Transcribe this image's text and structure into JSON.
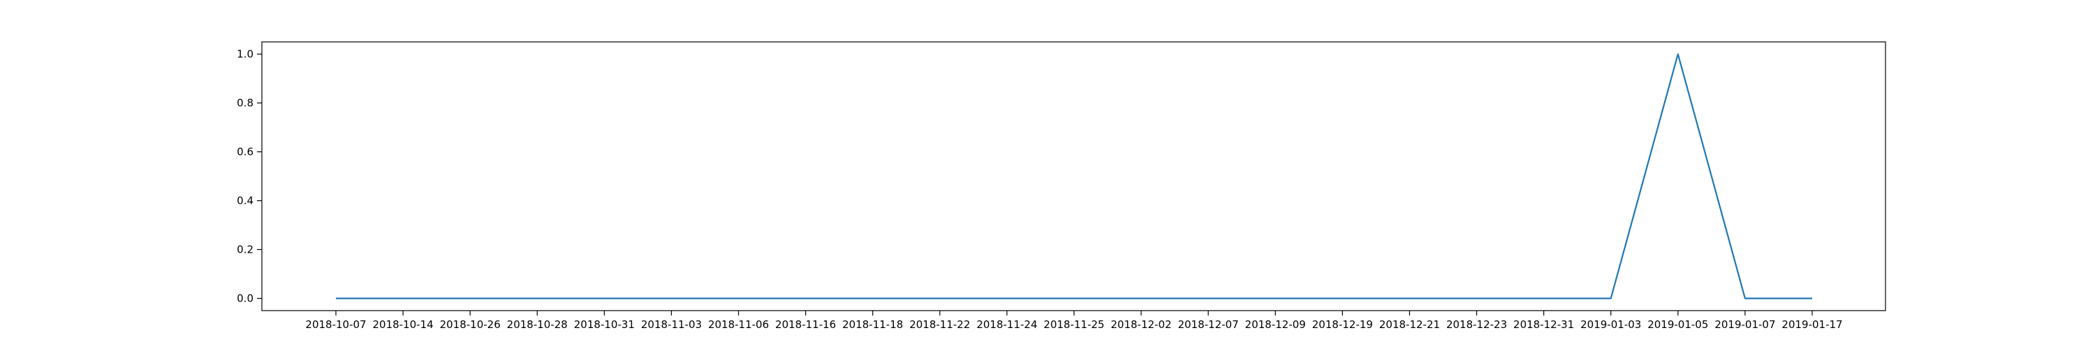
{
  "chart_data": {
    "type": "line",
    "title": "",
    "xlabel": "",
    "ylabel": "",
    "x": [
      "2018-10-07",
      "2018-10-14",
      "2018-10-26",
      "2018-10-28",
      "2018-10-31",
      "2018-11-03",
      "2018-11-06",
      "2018-11-16",
      "2018-11-18",
      "2018-11-22",
      "2018-11-24",
      "2018-11-25",
      "2018-12-02",
      "2018-12-07",
      "2018-12-09",
      "2018-12-19",
      "2018-12-21",
      "2018-12-23",
      "2018-12-31",
      "2019-01-03",
      "2019-01-05",
      "2019-01-07",
      "2019-01-17"
    ],
    "series": [
      {
        "values": [
          0,
          0,
          0,
          0,
          0,
          0,
          0,
          0,
          0,
          0,
          0,
          0,
          0,
          0,
          0,
          0,
          0,
          0,
          0,
          0,
          1.0,
          0,
          0
        ],
        "color": "#1f77b4"
      }
    ],
    "ylim": [
      -0.05,
      1.05
    ],
    "yticks": [
      0.0,
      0.2,
      0.4,
      0.6,
      0.8,
      1.0
    ],
    "ytick_labels": [
      "0.0",
      "0.2",
      "0.4",
      "0.6",
      "0.8",
      "1.0"
    ],
    "grid": false,
    "legend": "none"
  }
}
